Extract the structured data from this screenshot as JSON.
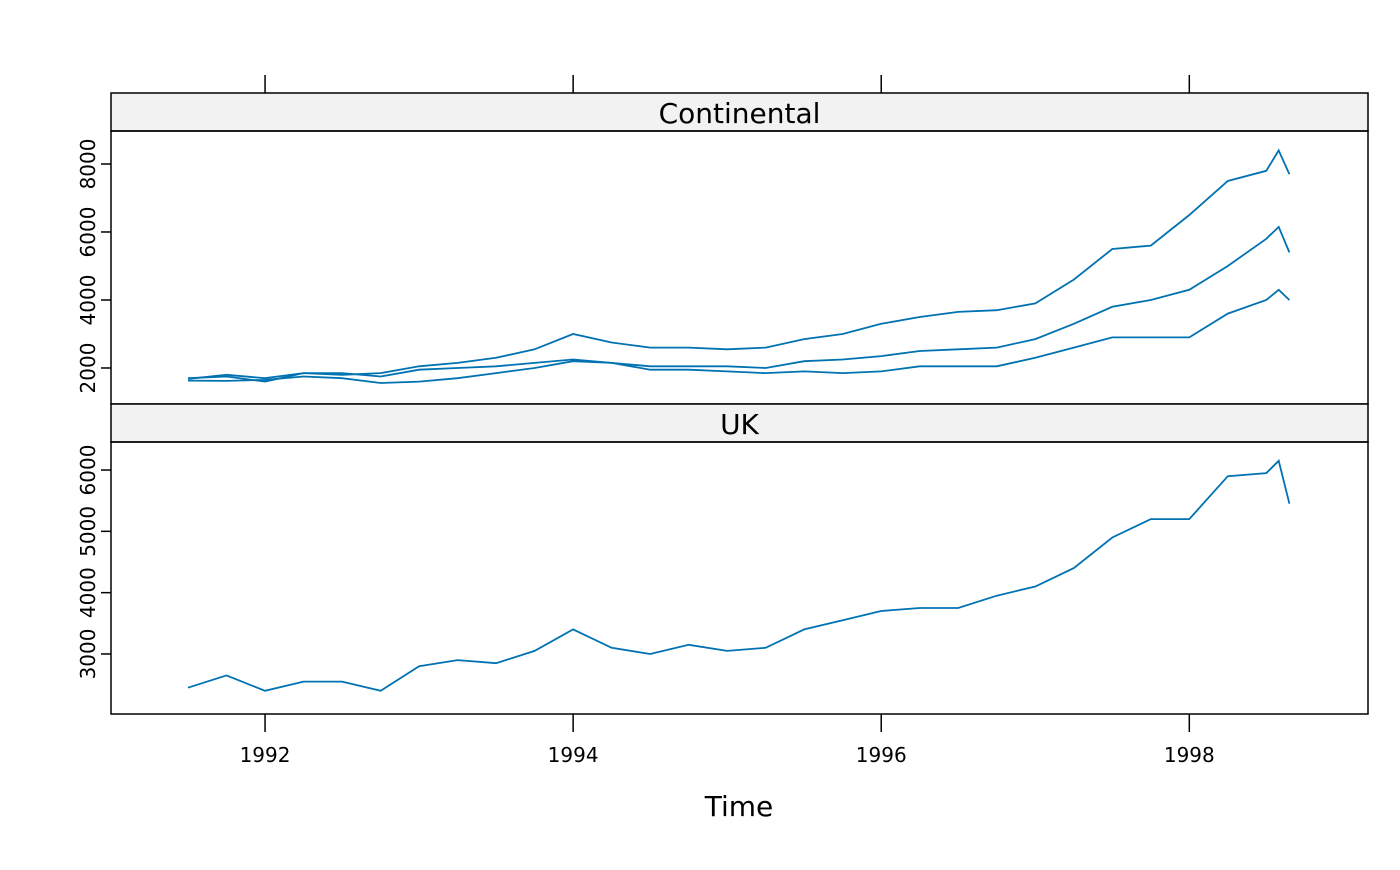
{
  "chart_data": {
    "type": "line",
    "xlabel": "Time",
    "ylabel": "",
    "xlim": [
      1991.0,
      1999.16
    ],
    "x_ticks": [
      1992,
      1994,
      1996,
      1998
    ],
    "x_tick_labels": [
      "1992",
      "1994",
      "1996",
      "1998"
    ],
    "grid": false,
    "line_color": "#0072B2",
    "panels": [
      {
        "strip": "Continental",
        "ylim": [
          941,
          8970
        ],
        "y_ticks": [
          2000,
          4000,
          6000,
          8000
        ],
        "y_tick_labels": [
          "2000",
          "4000",
          "6000",
          "8000"
        ],
        "x": [
          1991.5,
          1991.75,
          1992,
          1992.25,
          1992.5,
          1992.75,
          1993,
          1993.25,
          1993.5,
          1993.75,
          1994,
          1994.25,
          1994.5,
          1994.75,
          1995,
          1995.25,
          1995.5,
          1995.75,
          1996,
          1996.25,
          1996.5,
          1996.75,
          1997,
          1997.25,
          1997.5,
          1997.75,
          1998,
          1998.25,
          1998.5,
          1998.58,
          1998.65
        ],
        "series": [
          {
            "values": [
              1680,
              1800,
              1700,
              1850,
              1800,
              1850,
              2050,
              2150,
              2300,
              2550,
              3000,
              2750,
              2600,
              2600,
              2550,
              2600,
              2850,
              3000,
              3300,
              3500,
              3650,
              3700,
              3900,
              4600,
              5500,
              5600,
              6500,
              7500,
              7800,
              8400,
              7700
            ]
          },
          {
            "values": [
              1630,
              1620,
              1650,
              1750,
              1700,
              1560,
              1600,
              1700,
              1850,
              2000,
              2200,
              2150,
              2050,
              2050,
              2050,
              2000,
              2200,
              2250,
              2350,
              2500,
              2550,
              2600,
              2850,
              3300,
              3800,
              4000,
              4300,
              5000,
              5800,
              6150,
              5400
            ]
          },
          {
            "values": [
              1700,
              1750,
              1600,
              1850,
              1850,
              1750,
              1950,
              2000,
              2050,
              2150,
              2250,
              2150,
              1950,
              1950,
              1900,
              1850,
              1900,
              1850,
              1900,
              2050,
              2050,
              2050,
              2300,
              2600,
              2900,
              2900,
              2900,
              3600,
              4000,
              4300,
              4000
            ]
          }
        ]
      },
      {
        "strip": "UK",
        "ylim": [
          2021,
          6457
        ],
        "y_ticks": [
          3000,
          4000,
          5000,
          6000
        ],
        "y_tick_labels": [
          "3000",
          "4000",
          "5000",
          "6000"
        ],
        "x": [
          1991.5,
          1991.75,
          1992,
          1992.25,
          1992.5,
          1992.75,
          1993,
          1993.25,
          1993.5,
          1993.75,
          1994,
          1994.25,
          1994.5,
          1994.75,
          1995,
          1995.25,
          1995.5,
          1995.75,
          1996,
          1996.25,
          1996.5,
          1996.75,
          1997,
          1997.25,
          1997.5,
          1997.75,
          1998,
          1998.25,
          1998.5,
          1998.58,
          1998.65
        ],
        "series": [
          {
            "values": [
              2450,
              2650,
              2400,
              2550,
              2550,
              2400,
              2800,
              2900,
              2850,
              3050,
              3400,
              3100,
              3000,
              3150,
              3050,
              3100,
              3400,
              3550,
              3700,
              3750,
              3750,
              3950,
              4100,
              4400,
              4900,
              5200,
              5200,
              5900,
              5950,
              6150,
              5450
            ]
          }
        ]
      }
    ]
  }
}
